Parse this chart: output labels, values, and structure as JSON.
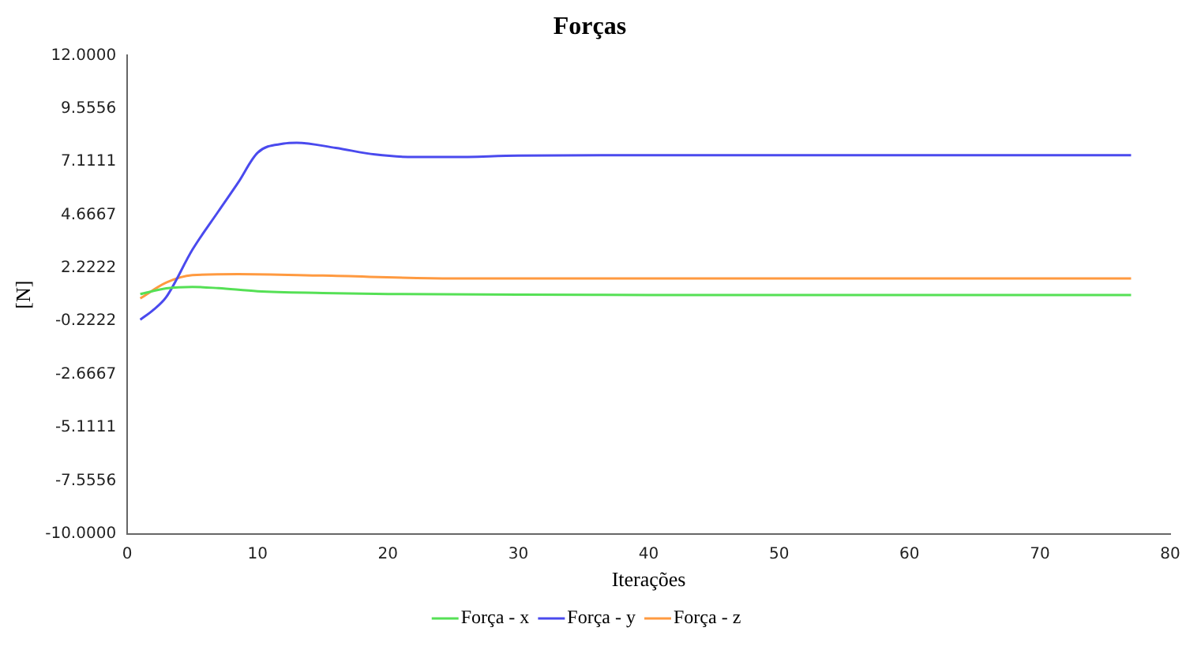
{
  "chart_data": {
    "type": "line",
    "title": "Forças",
    "xlabel": "Iterações",
    "ylabel": "[N]",
    "xlim": [
      0,
      80
    ],
    "xticks": [
      0,
      10,
      20,
      30,
      40,
      50,
      60,
      70,
      80
    ],
    "ylim": [
      -10,
      12
    ],
    "yticks": [
      {
        "value": -10,
        "label": "-10.0000"
      },
      {
        "value": -7.5556,
        "label": "-7.5556"
      },
      {
        "value": -5.1111,
        "label": "-5.1111"
      },
      {
        "value": -2.6667,
        "label": "-2.6667"
      },
      {
        "value": -0.2222,
        "label": "-0.2222"
      },
      {
        "value": 2.2222,
        "label": "2.2222"
      },
      {
        "value": 4.6667,
        "label": "4.6667"
      },
      {
        "value": 7.1111,
        "label": "7.1111"
      },
      {
        "value": 9.5556,
        "label": "9.5556"
      },
      {
        "value": 12,
        "label": "12.0000"
      }
    ],
    "grid": false,
    "legend": "bottom",
    "marker": "none",
    "line_style": "solid",
    "series": [
      {
        "name": "Força - x",
        "color": "#55e055",
        "x": [
          1,
          3,
          5,
          7,
          10,
          15,
          20,
          30,
          40,
          50,
          60,
          77
        ],
        "values": [
          1.03,
          1.29,
          1.36,
          1.3,
          1.16,
          1.08,
          1.03,
          1.0,
          0.99,
          0.99,
          0.99,
          0.99
        ]
      },
      {
        "name": "Força - y",
        "color": "#4a4aee",
        "x": [
          1,
          2,
          3,
          5,
          7,
          8.5,
          10,
          12,
          13,
          16,
          19,
          22,
          25,
          30,
          40,
          50,
          60,
          77
        ],
        "values": [
          -0.15,
          0.3,
          0.9,
          3.07,
          4.84,
          6.15,
          7.53,
          7.95,
          7.99,
          7.75,
          7.45,
          7.33,
          7.33,
          7.4,
          7.42,
          7.42,
          7.42,
          7.42
        ]
      },
      {
        "name": "Força - z",
        "color": "#ff9a40",
        "x": [
          1,
          3,
          5,
          8.5,
          15,
          25,
          40,
          60,
          77
        ],
        "values": [
          0.83,
          1.56,
          1.9,
          1.95,
          1.88,
          1.75,
          1.75,
          1.75,
          1.75
        ]
      }
    ]
  }
}
